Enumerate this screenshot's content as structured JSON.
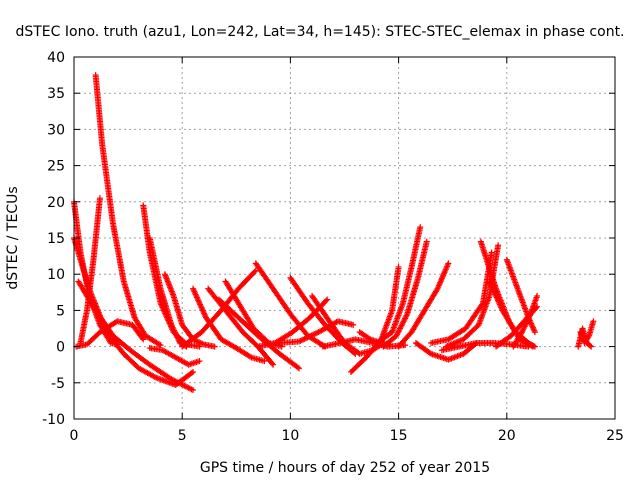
{
  "chart_data": {
    "type": "scatter",
    "title": "dSTEC Iono. truth (azu1, Lon=242, Lat=34, h=145): STEC-STEC_elemax in phase cont.",
    "xlabel": "GPS time / hours of day 252 of year 2015",
    "ylabel": "dSTEC  / TECUs",
    "xlim": [
      0,
      25
    ],
    "ylim": [
      -10,
      40
    ],
    "xticks": [
      0,
      5,
      10,
      15,
      20,
      25
    ],
    "yticks": [
      -10,
      -5,
      0,
      5,
      10,
      15,
      20,
      25,
      30,
      35,
      40
    ],
    "grid": true,
    "marker": "plus",
    "color": "#ff0000",
    "series": [
      {
        "x": [
          0.0,
          0.3,
          0.7,
          1.2,
          1.7,
          2.0
        ],
        "y": [
          20.0,
          13.0,
          7.0,
          3.0,
          0.5,
          0.3
        ]
      },
      {
        "x": [
          0.3,
          0.6,
          0.9,
          1.2
        ],
        "y": [
          0.5,
          5.0,
          12.0,
          20.5
        ]
      },
      {
        "x": [
          0.0,
          0.7,
          1.5,
          2.3,
          3.0,
          3.8,
          4.7,
          5.5
        ],
        "y": [
          15.0,
          8.0,
          2.0,
          -1.0,
          -3.0,
          -4.3,
          -5.3,
          -3.5
        ]
      },
      {
        "x": [
          0.2,
          1.0,
          1.8,
          2.6,
          3.5,
          4.5,
          5.5
        ],
        "y": [
          9.0,
          5.0,
          1.5,
          -0.5,
          -2.5,
          -4.5,
          -6.0
        ]
      },
      {
        "x": [
          0.1,
          0.6,
          1.2,
          2.0,
          2.7,
          3.2
        ],
        "y": [
          0.0,
          0.3,
          2.0,
          3.5,
          3.0,
          1.0
        ]
      },
      {
        "x": [
          1.0,
          1.3,
          1.8,
          2.3,
          2.8,
          3.3,
          4.0
        ],
        "y": [
          37.5,
          28.0,
          17.0,
          9.0,
          4.0,
          1.5,
          0.2
        ]
      },
      {
        "x": [
          3.2,
          3.5,
          4.0,
          4.6,
          5.2,
          5.8
        ],
        "y": [
          19.5,
          13.0,
          6.0,
          2.0,
          0.3,
          0.0
        ]
      },
      {
        "x": [
          3.5,
          4.0,
          4.5,
          4.9,
          5.2
        ],
        "y": [
          15.0,
          8.0,
          3.0,
          0.5,
          0.0
        ]
      },
      {
        "x": [
          3.5,
          4.1,
          4.7,
          5.3,
          5.8
        ],
        "y": [
          -0.2,
          -0.5,
          -1.5,
          -2.5,
          -2.0
        ]
      },
      {
        "x": [
          4.2,
          4.6,
          5.0,
          5.5,
          6.0,
          6.5
        ],
        "y": [
          10.0,
          7.0,
          3.0,
          1.0,
          0.3,
          0.0
        ]
      },
      {
        "x": [
          5.5,
          6.1,
          6.8,
          7.5,
          8.2,
          8.8
        ],
        "y": [
          8.0,
          4.0,
          1.0,
          -0.2,
          -1.5,
          -2.0
        ]
      },
      {
        "x": [
          5.0,
          5.9,
          6.8,
          7.6,
          8.4
        ],
        "y": [
          0.0,
          2.0,
          5.0,
          8.0,
          10.5
        ]
      },
      {
        "x": [
          6.2,
          7.0,
          7.8,
          8.5,
          9.2
        ],
        "y": [
          8.0,
          5.0,
          2.0,
          0.0,
          -2.5
        ]
      },
      {
        "x": [
          6.7,
          7.6,
          8.5,
          9.5,
          10.4
        ],
        "y": [
          6.5,
          4.0,
          1.5,
          -1.0,
          -3.0
        ]
      },
      {
        "x": [
          7.0,
          7.6,
          8.3,
          9.0,
          9.6
        ],
        "y": [
          9.0,
          6.0,
          2.5,
          0.5,
          0.0
        ]
      },
      {
        "x": [
          8.4,
          9.2,
          10.0,
          10.8,
          11.6
        ],
        "y": [
          11.5,
          8.0,
          4.5,
          1.5,
          0.0
        ]
      },
      {
        "x": [
          8.5,
          9.3,
          10.1,
          10.9,
          11.7
        ],
        "y": [
          0.0,
          0.5,
          2.0,
          4.0,
          6.5
        ]
      },
      {
        "x": [
          10.0,
          10.8,
          11.6,
          12.4,
          13.0
        ],
        "y": [
          9.5,
          6.0,
          3.0,
          0.5,
          -1.0
        ]
      },
      {
        "x": [
          9.5,
          10.4,
          11.3,
          12.2,
          12.9
        ],
        "y": [
          0.5,
          0.7,
          2.0,
          3.5,
          3.0
        ]
      },
      {
        "x": [
          11.0,
          11.8,
          12.5,
          13.2,
          13.8,
          14.3
        ],
        "y": [
          7.0,
          3.5,
          0.5,
          -1.0,
          -0.5,
          0.5
        ]
      },
      {
        "x": [
          11.5,
          12.3,
          13.0,
          13.8,
          14.5,
          15.3
        ],
        "y": [
          0.0,
          0.5,
          1.0,
          0.5,
          0.0,
          0.2
        ]
      },
      {
        "x": [
          12.8,
          13.5,
          14.2,
          14.7,
          15.0
        ],
        "y": [
          -3.5,
          -1.5,
          1.0,
          5.0,
          11.0
        ]
      },
      {
        "x": [
          13.2,
          13.7,
          14.2,
          14.6
        ],
        "y": [
          2.0,
          1.0,
          0.5,
          0.3
        ]
      },
      {
        "x": [
          14.0,
          14.7,
          15.2,
          15.6,
          16.0
        ],
        "y": [
          0.5,
          2.0,
          6.0,
          11.0,
          16.5
        ]
      },
      {
        "x": [
          14.3,
          14.9,
          15.4,
          15.9,
          16.3
        ],
        "y": [
          0.0,
          1.5,
          4.5,
          9.5,
          14.5
        ]
      },
      {
        "x": [
          15.0,
          15.6,
          16.2,
          16.8,
          17.3
        ],
        "y": [
          0.0,
          2.0,
          5.0,
          8.0,
          11.5
        ]
      },
      {
        "x": [
          15.8,
          16.5,
          17.3,
          18.0,
          18.6
        ],
        "y": [
          0.5,
          -1.0,
          -1.8,
          -1.0,
          0.5
        ]
      },
      {
        "x": [
          16.5,
          17.3,
          18.1,
          18.9,
          19.3
        ],
        "y": [
          0.5,
          1.0,
          2.5,
          6.0,
          13.0
        ]
      },
      {
        "x": [
          17.2,
          18.0,
          18.7,
          19.2,
          19.6
        ],
        "y": [
          0.0,
          1.0,
          3.0,
          7.0,
          14.0
        ]
      },
      {
        "x": [
          17.0,
          17.8,
          18.6,
          19.4,
          20.2,
          21.0
        ],
        "y": [
          -0.5,
          0.0,
          0.5,
          0.5,
          0.3,
          0.0
        ]
      },
      {
        "x": [
          18.8,
          19.5,
          20.1,
          20.6,
          21.2
        ],
        "y": [
          14.5,
          8.0,
          3.5,
          1.0,
          0.0
        ]
      },
      {
        "x": [
          19.2,
          19.8,
          20.4,
          21.0,
          21.3
        ],
        "y": [
          9.0,
          5.0,
          2.0,
          0.5,
          0.0
        ]
      },
      {
        "x": [
          20.0,
          20.5,
          21.0,
          21.3
        ],
        "y": [
          12.0,
          8.0,
          4.0,
          2.0
        ]
      },
      {
        "x": [
          19.5,
          20.2,
          20.8,
          21.4
        ],
        "y": [
          0.0,
          1.5,
          3.5,
          5.5
        ]
      },
      {
        "x": [
          20.3,
          20.7,
          21.1,
          21.4
        ],
        "y": [
          0.0,
          2.0,
          4.5,
          7.0
        ]
      },
      {
        "x": [
          23.4,
          23.6,
          23.8,
          24.0
        ],
        "y": [
          2.0,
          0.5,
          1.5,
          3.5
        ]
      },
      {
        "x": [
          23.3,
          23.5,
          23.7,
          23.9
        ],
        "y": [
          0.0,
          2.5,
          0.5,
          0.0
        ]
      }
    ]
  }
}
